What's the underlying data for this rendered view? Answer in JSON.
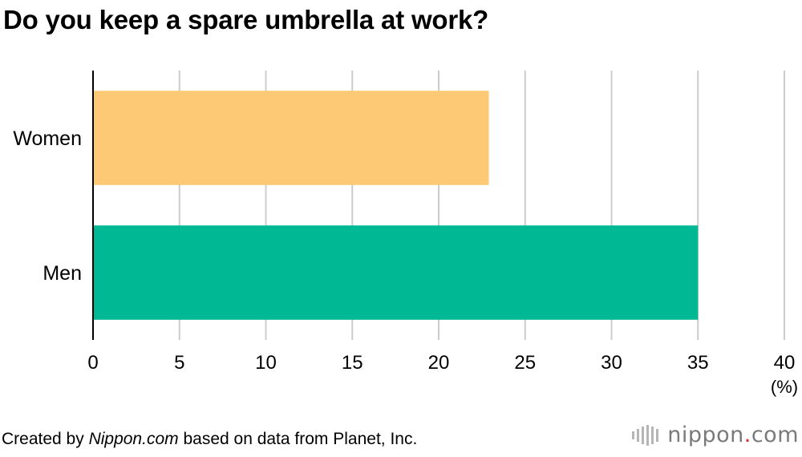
{
  "title": "Do you keep a spare umbrella at work?",
  "chart_data": {
    "type": "bar",
    "orientation": "horizontal",
    "categories": [
      "Women",
      "Men"
    ],
    "values": [
      22.9,
      35.0
    ],
    "bar_colors": [
      "#fdc974",
      "#00b894"
    ],
    "xlim": [
      0,
      40
    ],
    "xticks": [
      0,
      5,
      10,
      15,
      20,
      25,
      30,
      35,
      40
    ],
    "unit_label": "(%)",
    "grid": "vertical"
  },
  "footer": {
    "prefix": "Created by ",
    "source_italic": "Nippon.com",
    "suffix": " based on data from Planet, Inc."
  },
  "brand": {
    "name": "nippon",
    "dot": ".",
    "tld": "com",
    "accent": "#d62a2a"
  }
}
